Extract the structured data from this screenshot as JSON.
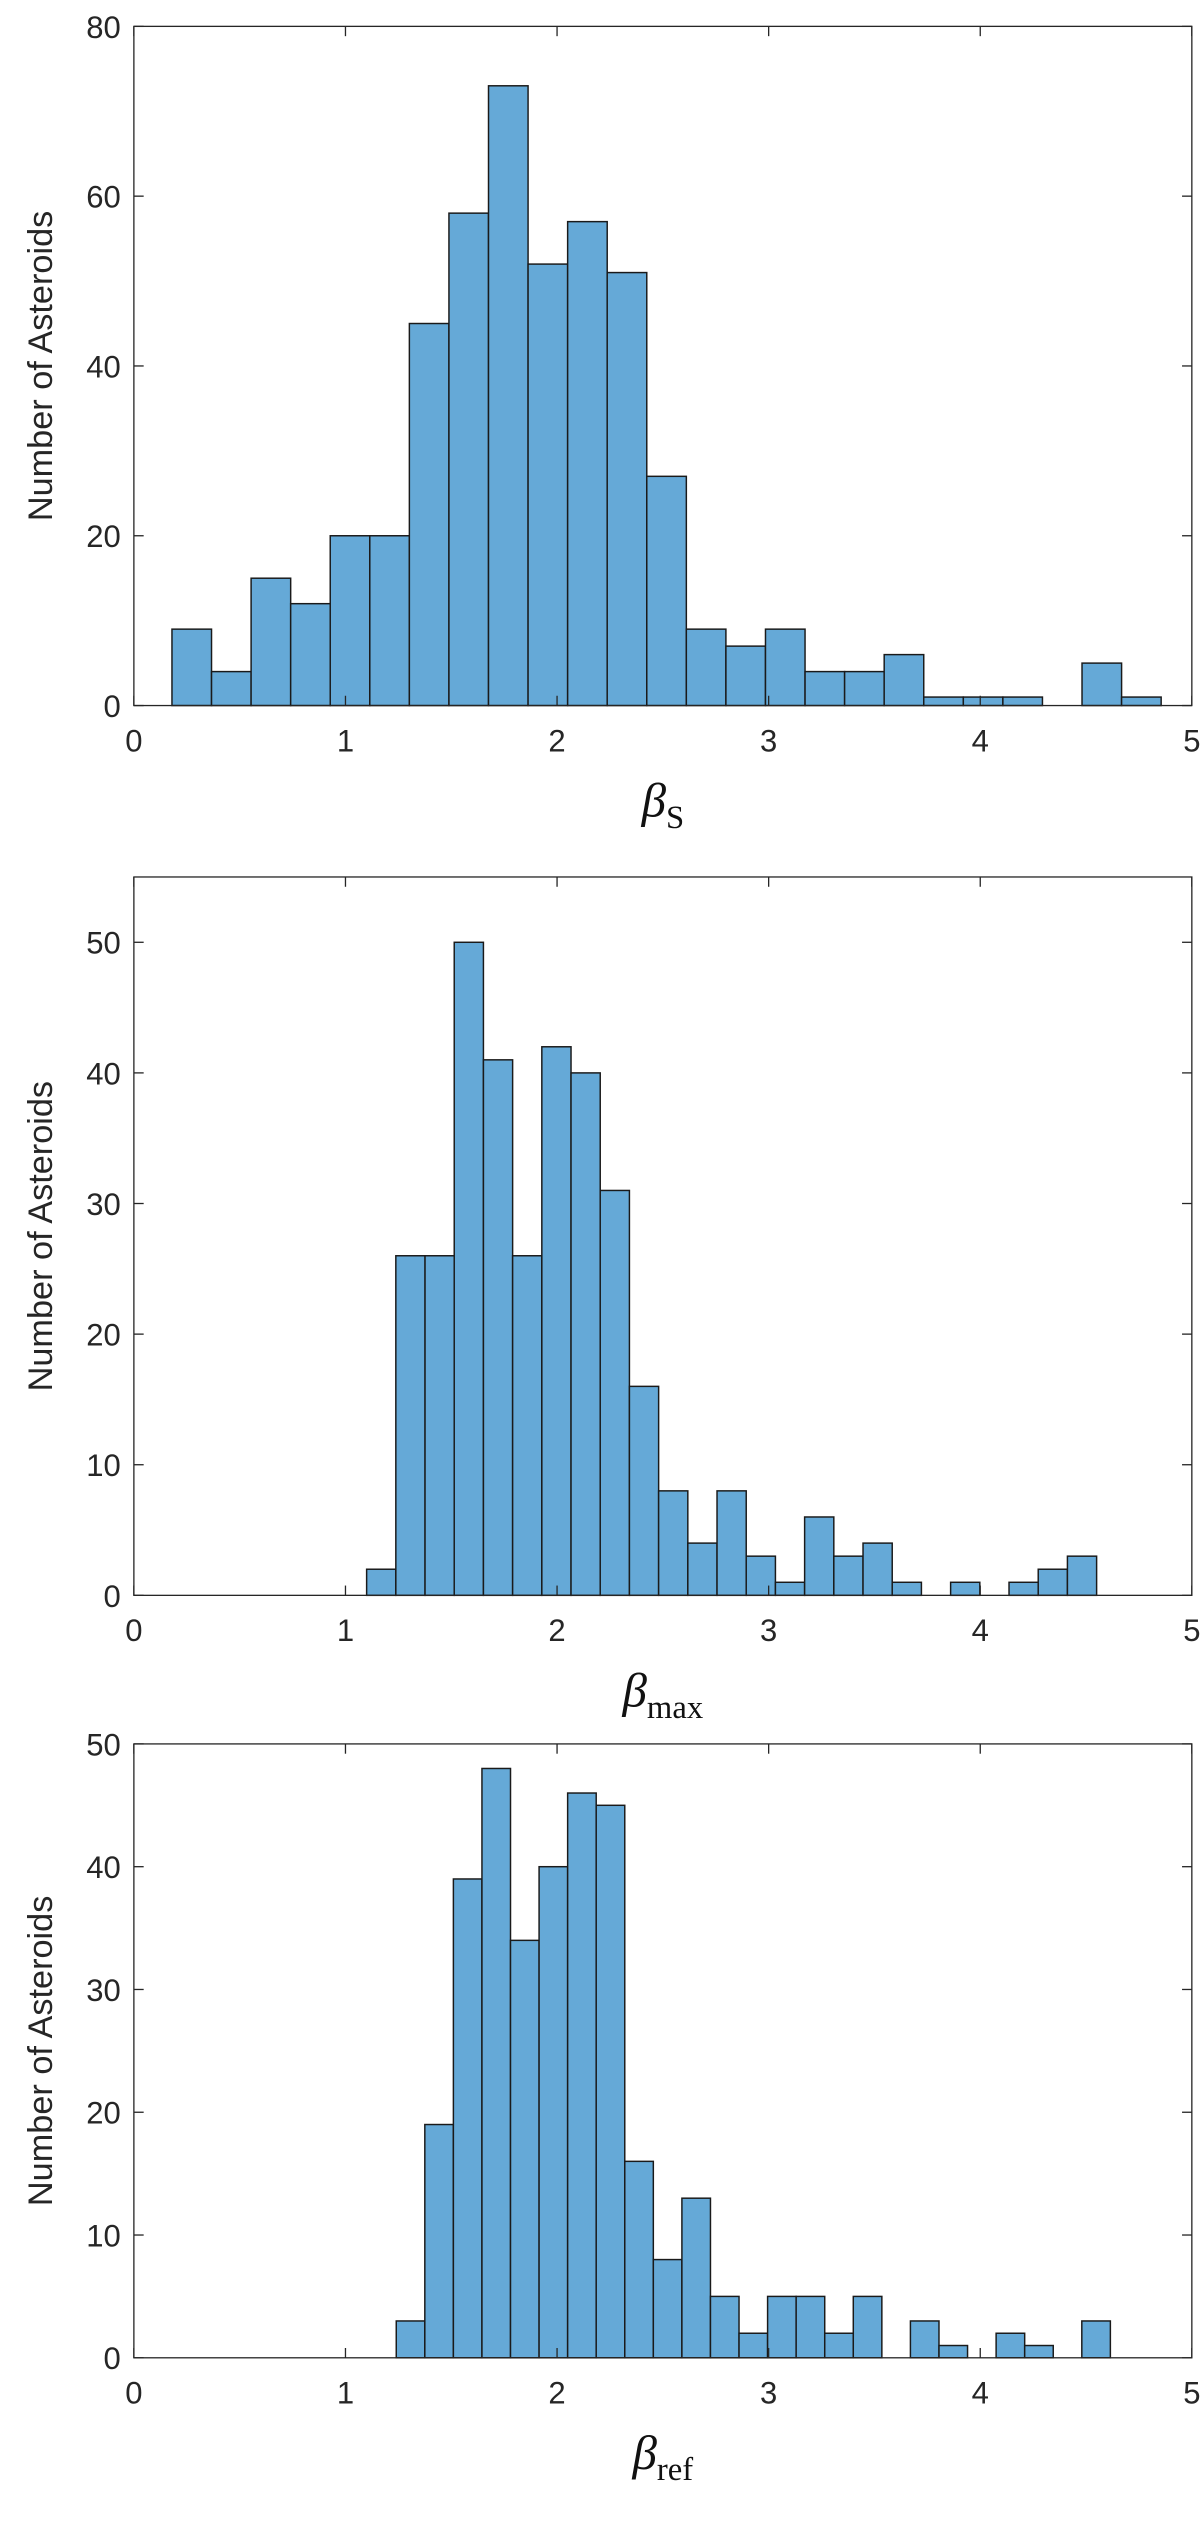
{
  "chart_data": [
    {
      "type": "bar",
      "subtype": "histogram",
      "xlabel": "β",
      "xlabel_subscript": "S",
      "ylabel": "Number of Asteroids",
      "xlim": [
        0,
        5
      ],
      "ylim": [
        0,
        80
      ],
      "xticks": [
        "0",
        "1",
        "2",
        "3",
        "4",
        "5"
      ],
      "yticks": [
        "0",
        "20",
        "40",
        "60",
        "80"
      ],
      "bin_start": 0.18,
      "bin_width": 0.187,
      "values": [
        9,
        4,
        15,
        12,
        20,
        20,
        45,
        58,
        73,
        52,
        57,
        51,
        27,
        9,
        7,
        9,
        4,
        4,
        6,
        1,
        1,
        1,
        0,
        5,
        1
      ],
      "color": "#65A9D7",
      "grid": false
    },
    {
      "type": "bar",
      "subtype": "histogram",
      "xlabel": "β",
      "xlabel_subscript": "max",
      "ylabel": "Number of Asteroids",
      "xlim": [
        0,
        5
      ],
      "ylim": [
        0,
        55
      ],
      "xticks": [
        "0",
        "1",
        "2",
        "3",
        "4",
        "5"
      ],
      "yticks": [
        "0",
        "10",
        "20",
        "30",
        "40",
        "50"
      ],
      "bin_start": 1.1,
      "bin_width": 0.138,
      "values": [
        2,
        26,
        26,
        50,
        41,
        26,
        42,
        40,
        31,
        16,
        8,
        4,
        8,
        3,
        1,
        6,
        3,
        4,
        1,
        0,
        1,
        0,
        1,
        2,
        3
      ],
      "color": "#65A9D7",
      "grid": false
    },
    {
      "type": "bar",
      "subtype": "histogram",
      "xlabel": "β",
      "xlabel_subscript": "ref",
      "ylabel": "Number of Asteroids",
      "xlim": [
        0,
        5
      ],
      "ylim": [
        0,
        50
      ],
      "xticks": [
        "0",
        "1",
        "2",
        "3",
        "4",
        "5"
      ],
      "yticks": [
        "0",
        "10",
        "20",
        "30",
        "40",
        "50"
      ],
      "bin_start": 1.24,
      "bin_width": 0.135,
      "values": [
        3,
        19,
        39,
        48,
        34,
        40,
        46,
        45,
        16,
        8,
        13,
        5,
        2,
        5,
        5,
        2,
        5,
        0,
        3,
        1,
        0,
        2,
        1,
        0,
        3
      ],
      "color": "#65A9D7",
      "grid": false
    }
  ]
}
